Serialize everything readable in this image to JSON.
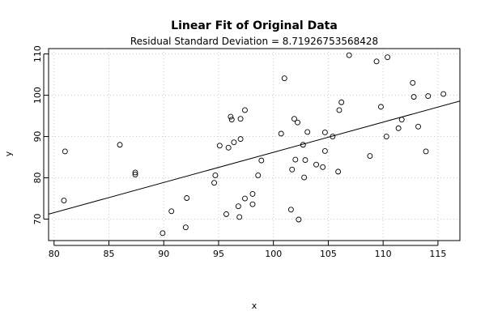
{
  "chart_data": {
    "type": "scatter",
    "title": "Linear Fit of Original Data",
    "subtitle": "Residual Standard Deviation =  8.71926753568428",
    "xlabel": "x",
    "ylabel": "y",
    "xlim": [
      79.5,
      117
    ],
    "ylim": [
      64.8,
      111.3
    ],
    "x_ticks": [
      80,
      85,
      90,
      95,
      100,
      105,
      110,
      115
    ],
    "y_ticks": [
      70,
      80,
      90,
      100,
      110
    ],
    "grid": true,
    "fit_line": {
      "x": [
        79.5,
        117
      ],
      "y": [
        71.2,
        98.6
      ]
    },
    "points": [
      [
        81.0,
        86.4
      ],
      [
        80.9,
        74.5
      ],
      [
        86.0,
        88.0
      ],
      [
        87.4,
        81.3
      ],
      [
        87.4,
        80.8
      ],
      [
        89.9,
        66.6
      ],
      [
        90.7,
        71.9
      ],
      [
        92.0,
        68.0
      ],
      [
        92.1,
        75.1
      ],
      [
        94.6,
        78.8
      ],
      [
        94.7,
        80.6
      ],
      [
        95.1,
        87.8
      ],
      [
        95.7,
        71.2
      ],
      [
        95.9,
        87.3
      ],
      [
        96.1,
        94.8
      ],
      [
        96.2,
        94.1
      ],
      [
        96.4,
        88.6
      ],
      [
        96.8,
        73.1
      ],
      [
        96.9,
        70.5
      ],
      [
        97.0,
        89.4
      ],
      [
        97.0,
        94.3
      ],
      [
        97.4,
        96.4
      ],
      [
        97.4,
        75.0
      ],
      [
        98.1,
        76.1
      ],
      [
        98.1,
        73.6
      ],
      [
        98.6,
        80.6
      ],
      [
        98.9,
        84.2
      ],
      [
        100.7,
        90.7
      ],
      [
        101.0,
        104.1
      ],
      [
        101.6,
        72.3
      ],
      [
        101.7,
        82.0
      ],
      [
        101.9,
        94.3
      ],
      [
        102.0,
        84.4
      ],
      [
        102.2,
        93.4
      ],
      [
        102.3,
        69.9
      ],
      [
        102.7,
        88.0
      ],
      [
        102.8,
        80.1
      ],
      [
        102.9,
        84.3
      ],
      [
        103.1,
        91.1
      ],
      [
        103.9,
        83.2
      ],
      [
        104.5,
        82.6
      ],
      [
        104.7,
        91.0
      ],
      [
        104.7,
        86.5
      ],
      [
        105.4,
        90.0
      ],
      [
        105.9,
        81.5
      ],
      [
        106.0,
        96.4
      ],
      [
        106.2,
        98.3
      ],
      [
        106.9,
        109.7
      ],
      [
        108.8,
        85.3
      ],
      [
        109.4,
        108.2
      ],
      [
        109.8,
        97.2
      ],
      [
        110.3,
        90.0
      ],
      [
        110.4,
        109.2
      ],
      [
        111.4,
        92.0
      ],
      [
        111.7,
        94.1
      ],
      [
        112.7,
        103.0
      ],
      [
        112.8,
        99.6
      ],
      [
        113.2,
        92.4
      ],
      [
        113.9,
        86.4
      ],
      [
        114.1,
        99.8
      ],
      [
        115.5,
        100.3
      ]
    ]
  }
}
